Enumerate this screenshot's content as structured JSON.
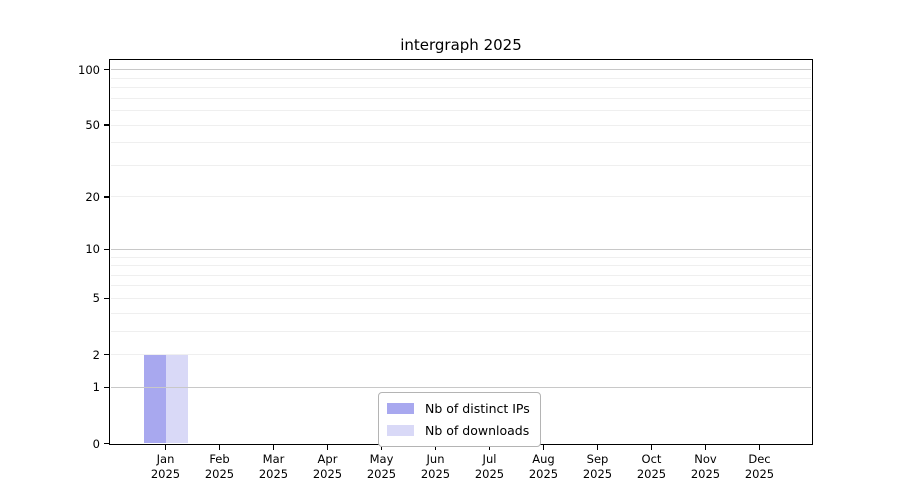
{
  "page": {
    "background": "#ffffff"
  },
  "chart_data": {
    "type": "bar",
    "title": "intergraph 2025",
    "categories": [
      "Jan",
      "Feb",
      "Mar",
      "Apr",
      "May",
      "Jun",
      "Jul",
      "Aug",
      "Sep",
      "Oct",
      "Nov",
      "Dec"
    ],
    "x_sublabel": "2025",
    "series": [
      {
        "name": "Nb of distinct IPs",
        "color": "#a8a8ef",
        "values": [
          2,
          0,
          0,
          0,
          0,
          0,
          0,
          0,
          0,
          0,
          0,
          0
        ]
      },
      {
        "name": "Nb of downloads",
        "color": "#d9d9f7",
        "values": [
          2,
          0,
          0,
          0,
          0,
          0,
          0,
          0,
          0,
          0,
          0,
          0
        ]
      }
    ],
    "yticks": [
      0,
      1,
      2,
      5,
      10,
      20,
      50,
      100
    ],
    "ytick_labels": [
      "0",
      "1",
      "2",
      "5",
      "10",
      "20",
      "50",
      "100"
    ],
    "ylim": [
      0,
      115
    ],
    "yscale": "log10(1+value)",
    "xlabel": "",
    "ylabel": "",
    "grid": {
      "show": true,
      "minor_values": [
        2,
        3,
        4,
        5,
        6,
        7,
        8,
        9,
        20,
        30,
        40,
        50,
        60,
        70,
        80,
        90
      ],
      "major_values": [
        1,
        10,
        100
      ],
      "minor_color": "#efefef",
      "major_color": "#c8c8c8"
    },
    "legend": {
      "position": "lower center"
    },
    "axis_color": "#000000",
    "text_color": "#000000"
  }
}
